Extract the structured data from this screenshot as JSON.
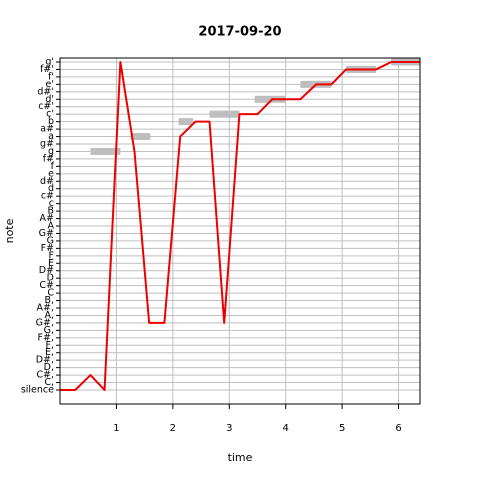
{
  "chart_data": {
    "type": "line",
    "title": "2017-09-20",
    "xlabel": "time",
    "ylabel": "note",
    "y_categories": [
      "silence",
      "C,",
      "C#,",
      "D,",
      "D#,",
      "E,",
      "F,",
      "F#,",
      "G,",
      "G#,",
      "A,",
      "A#,",
      "B,",
      "C",
      "C#",
      "D",
      "D#",
      "E",
      "F",
      "F#",
      "G",
      "G#",
      "A",
      "A#",
      "B",
      "c",
      "c#",
      "d",
      "d#",
      "e",
      "f",
      "f#",
      "g",
      "g#",
      "a",
      "a#",
      "b",
      "c'",
      "c#'",
      "d'",
      "d#'",
      "e'",
      "f'",
      "f#'",
      "g'"
    ],
    "xlim": [
      0,
      6.38
    ],
    "xticks": [
      1,
      2,
      3,
      4,
      5,
      6
    ],
    "grid": true,
    "series": [
      {
        "color": "#ee0000",
        "x": [
          0,
          0.27,
          0.54,
          0.79,
          1.07,
          1.32,
          1.58,
          1.85,
          2.13,
          2.4,
          2.65,
          2.91,
          3.18,
          3.5,
          3.76,
          4.26,
          4.54,
          4.81,
          5.07,
          5.6,
          5.87,
          6.38
        ],
        "values": [
          "silence",
          "silence",
          "C#,",
          "silence",
          "g'",
          "g",
          "G#,",
          "G#,",
          "a",
          "b",
          "b",
          "G#,",
          "c'",
          "c'",
          "d'",
          "d'",
          "e'",
          "e'",
          "f#'",
          "f#'",
          "g'",
          "g'"
        ]
      }
    ],
    "segments": {
      "color": "#bebebe",
      "notes": [
        "g",
        "a",
        "b",
        "c'",
        "d'",
        "e'",
        "f#'",
        "g'"
      ],
      "start": [
        0.54,
        1.25,
        2.1,
        2.65,
        3.45,
        4.26,
        5.07,
        5.87
      ],
      "end": [
        1.07,
        1.6,
        2.36,
        3.18,
        4.0,
        4.81,
        5.6,
        6.38
      ]
    }
  }
}
